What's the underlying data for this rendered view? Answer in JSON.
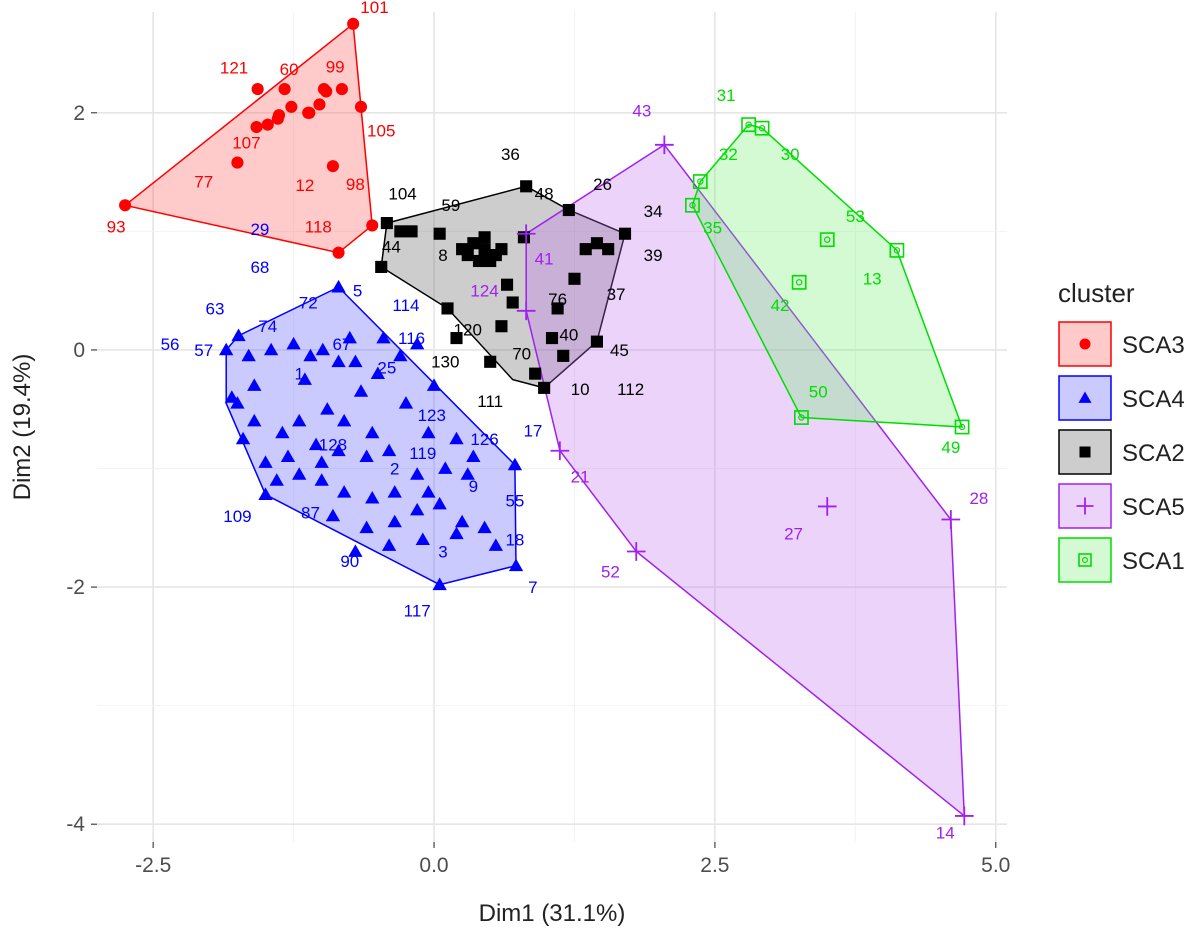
{
  "chart_data": {
    "type": "scatter",
    "xlabel": "Dim1 (31.1%)",
    "ylabel": "Dim2 (19.4%)",
    "xlim": [
      -3.0,
      5.1
    ],
    "ylim": [
      -4.15,
      2.85
    ],
    "x_ticks": [
      -2.5,
      0.0,
      2.5,
      5.0
    ],
    "x_tick_labels": [
      "-2.5",
      "0.0",
      "2.5",
      "5.0"
    ],
    "y_ticks": [
      -4,
      -2,
      0,
      2
    ],
    "y_tick_labels": [
      "-4",
      "-2",
      "0",
      "2"
    ],
    "grid": true,
    "legend": {
      "title": "cluster",
      "position": "right",
      "entries": [
        {
          "label": "SCA3",
          "color": "#ff0000",
          "shape": "circle"
        },
        {
          "label": "SCA4",
          "color": "#0000ff",
          "shape": "triangle"
        },
        {
          "label": "SCA2",
          "color": "#000000",
          "shape": "square"
        },
        {
          "label": "SCA5",
          "color": "#a020f0",
          "shape": "plus"
        },
        {
          "label": "SCA1",
          "color": "#00dd00",
          "shape": "boxed-square"
        }
      ]
    },
    "clusters": [
      {
        "name": "SCA3",
        "color": "#ff0000",
        "fill": "rgba(255,80,80,0.30)",
        "shape": "circle",
        "hull": [
          [
            -0.72,
            2.75
          ],
          [
            -0.55,
            1.05
          ],
          [
            -0.85,
            0.82
          ],
          [
            -2.75,
            1.22
          ]
        ],
        "points": [
          [
            -0.72,
            2.75
          ],
          [
            -2.75,
            1.22
          ],
          [
            -0.55,
            1.05
          ],
          [
            -0.85,
            0.82
          ],
          [
            -1.57,
            2.2
          ],
          [
            -1.33,
            2.2
          ],
          [
            -0.98,
            2.2
          ],
          [
            -0.82,
            2.2
          ],
          [
            -1.27,
            2.05
          ],
          [
            -1.02,
            2.07
          ],
          [
            -0.65,
            2.05
          ],
          [
            -1.38,
            1.98
          ],
          [
            -1.48,
            1.9
          ],
          [
            -1.12,
            2.0
          ],
          [
            -1.11,
            2.0
          ],
          [
            -1.58,
            1.88
          ],
          [
            -1.75,
            1.58
          ],
          [
            -0.9,
            1.55
          ],
          [
            -1.39,
            1.95
          ],
          [
            -0.96,
            2.18
          ]
        ],
        "labels": [
          {
            "text": "101",
            "x": -0.53,
            "y": 2.84
          },
          {
            "text": "121",
            "x": -1.78,
            "y": 2.33
          },
          {
            "text": "60",
            "x": -1.29,
            "y": 2.32
          },
          {
            "text": "99",
            "x": -0.88,
            "y": 2.34
          },
          {
            "text": "105",
            "x": -0.47,
            "y": 1.8
          },
          {
            "text": "107",
            "x": -1.67,
            "y": 1.7
          },
          {
            "text": "77",
            "x": -2.05,
            "y": 1.37
          },
          {
            "text": "12",
            "x": -1.15,
            "y": 1.34
          },
          {
            "text": "98",
            "x": -0.7,
            "y": 1.35
          },
          {
            "text": "118",
            "x": -1.03,
            "y": 0.99
          },
          {
            "text": "93",
            "x": -2.83,
            "y": 0.99
          }
        ]
      },
      {
        "name": "SCA4",
        "color": "#0000ff",
        "fill": "rgba(80,80,255,0.30)",
        "shape": "triangle",
        "hull": [
          [
            -0.85,
            0.53
          ],
          [
            0.72,
            -0.97
          ],
          [
            0.73,
            -1.82
          ],
          [
            0.05,
            -1.98
          ],
          [
            -1.5,
            -1.22
          ],
          [
            -1.85,
            -0.45
          ],
          [
            -1.85,
            0.0
          ],
          [
            -1.74,
            0.12
          ]
        ],
        "points": [
          [
            -0.85,
            0.53
          ],
          [
            -1.85,
            0.0
          ],
          [
            -1.74,
            0.12
          ],
          [
            0.72,
            -0.97
          ],
          [
            0.73,
            -1.82
          ],
          [
            0.05,
            -1.98
          ],
          [
            -1.5,
            -1.22
          ],
          [
            -1.75,
            -0.45
          ],
          [
            -0.99,
            0.0
          ],
          [
            -0.85,
            -0.1
          ],
          [
            -1.65,
            -0.05
          ],
          [
            -1.45,
            0.0
          ],
          [
            -1.1,
            -0.05
          ],
          [
            -0.7,
            -0.1
          ],
          [
            -0.5,
            -0.2
          ],
          [
            -1.8,
            -0.4
          ],
          [
            -1.6,
            -0.6
          ],
          [
            -1.35,
            -0.7
          ],
          [
            -1.2,
            -0.6
          ],
          [
            -0.95,
            -0.5
          ],
          [
            -0.8,
            -0.6
          ],
          [
            -0.55,
            -0.7
          ],
          [
            -1.7,
            -0.75
          ],
          [
            -1.5,
            -0.95
          ],
          [
            -1.3,
            -0.9
          ],
          [
            -1.05,
            -0.8
          ],
          [
            -0.85,
            -0.85
          ],
          [
            -0.6,
            -0.9
          ],
          [
            -0.4,
            -0.85
          ],
          [
            -1.4,
            -1.1
          ],
          [
            -1.2,
            -1.05
          ],
          [
            -1.0,
            -1.1
          ],
          [
            -0.8,
            -1.2
          ],
          [
            -0.55,
            -1.25
          ],
          [
            -0.35,
            -1.2
          ],
          [
            -0.15,
            -1.05
          ],
          [
            0.1,
            -1.0
          ],
          [
            0.3,
            -1.05
          ],
          [
            -0.9,
            -1.4
          ],
          [
            -0.6,
            -1.5
          ],
          [
            -0.35,
            -1.45
          ],
          [
            -0.15,
            -1.35
          ],
          [
            0.05,
            -1.3
          ],
          [
            0.25,
            -1.45
          ],
          [
            0.45,
            -1.5
          ],
          [
            -0.7,
            -1.7
          ],
          [
            -0.4,
            -1.65
          ],
          [
            -0.1,
            -1.6
          ],
          [
            0.2,
            -1.55
          ],
          [
            0.55,
            -1.65
          ],
          [
            -0.3,
            -0.05
          ],
          [
            -0.15,
            0.05
          ],
          [
            0.0,
            -0.3
          ],
          [
            -0.25,
            -0.45
          ],
          [
            -0.05,
            -0.7
          ],
          [
            0.2,
            -0.75
          ],
          [
            0.35,
            -0.9
          ],
          [
            -0.45,
            0.1
          ],
          [
            -1.25,
            0.05
          ],
          [
            -0.75,
            0.1
          ],
          [
            -1.6,
            -0.3
          ],
          [
            -1.15,
            -0.25
          ],
          [
            -0.65,
            -0.35
          ],
          [
            -1.0,
            -0.95
          ],
          [
            -0.05,
            -1.2
          ]
        ],
        "labels": [
          {
            "text": "29",
            "x": -1.55,
            "y": 0.97
          },
          {
            "text": "68",
            "x": -1.55,
            "y": 0.65
          },
          {
            "text": "5",
            "x": -0.68,
            "y": 0.45
          },
          {
            "text": "72",
            "x": -1.12,
            "y": 0.35
          },
          {
            "text": "63",
            "x": -1.95,
            "y": 0.3
          },
          {
            "text": "74",
            "x": -1.48,
            "y": 0.15
          },
          {
            "text": "114",
            "x": -0.25,
            "y": 0.33
          },
          {
            "text": "67",
            "x": -0.82,
            "y": 0.0
          },
          {
            "text": "116",
            "x": -0.2,
            "y": 0.05
          },
          {
            "text": "56",
            "x": -2.35,
            "y": 0.0
          },
          {
            "text": "57",
            "x": -2.05,
            "y": -0.05
          },
          {
            "text": "1",
            "x": -1.2,
            "y": -0.25
          },
          {
            "text": "25",
            "x": -0.42,
            "y": -0.2
          },
          {
            "text": "123",
            "x": -0.02,
            "y": -0.6
          },
          {
            "text": "128",
            "x": -0.9,
            "y": -0.85
          },
          {
            "text": "2",
            "x": -0.35,
            "y": -1.05
          },
          {
            "text": "119",
            "x": -0.1,
            "y": -0.92
          },
          {
            "text": "126",
            "x": 0.45,
            "y": -0.8
          },
          {
            "text": "17",
            "x": 0.88,
            "y": -0.73
          },
          {
            "text": "9",
            "x": 0.35,
            "y": -1.2
          },
          {
            "text": "55",
            "x": 0.72,
            "y": -1.32
          },
          {
            "text": "109",
            "x": -1.75,
            "y": -1.45
          },
          {
            "text": "87",
            "x": -1.1,
            "y": -1.42
          },
          {
            "text": "18",
            "x": 0.72,
            "y": -1.65
          },
          {
            "text": "3",
            "x": 0.08,
            "y": -1.75
          },
          {
            "text": "90",
            "x": -0.75,
            "y": -1.83
          },
          {
            "text": "7",
            "x": 0.88,
            "y": -2.05
          },
          {
            "text": "117",
            "x": -0.15,
            "y": -2.25
          }
        ]
      },
      {
        "name": "SCA2",
        "color": "#000000",
        "fill": "rgba(90,90,90,0.30)",
        "shape": "square",
        "hull": [
          [
            0.82,
            1.38
          ],
          [
            1.2,
            1.18
          ],
          [
            1.7,
            0.98
          ],
          [
            1.45,
            0.07
          ],
          [
            0.98,
            -0.32
          ],
          [
            0.7,
            -0.25
          ],
          [
            0.12,
            0.35
          ],
          [
            -0.47,
            0.7
          ],
          [
            -0.42,
            1.07
          ]
        ],
        "points": [
          [
            0.82,
            1.38
          ],
          [
            1.2,
            1.18
          ],
          [
            1.7,
            0.98
          ],
          [
            1.45,
            0.07
          ],
          [
            0.98,
            -0.32
          ],
          [
            0.12,
            0.35
          ],
          [
            -0.47,
            0.7
          ],
          [
            -0.42,
            1.07
          ],
          [
            -0.2,
            1.0
          ],
          [
            0.05,
            0.98
          ],
          [
            0.25,
            0.85
          ],
          [
            0.35,
            0.9
          ],
          [
            0.45,
            0.85
          ],
          [
            0.5,
            0.75
          ],
          [
            0.55,
            0.8
          ],
          [
            0.3,
            0.8
          ],
          [
            0.4,
            0.75
          ],
          [
            0.6,
            0.85
          ],
          [
            0.45,
            0.95
          ],
          [
            0.65,
            0.55
          ],
          [
            0.7,
            0.4
          ],
          [
            0.6,
            0.2
          ],
          [
            1.1,
            0.35
          ],
          [
            1.25,
            0.6
          ],
          [
            1.35,
            0.85
          ],
          [
            1.45,
            0.9
          ],
          [
            1.55,
            0.85
          ],
          [
            1.05,
            0.1
          ],
          [
            0.2,
            0.1
          ],
          [
            0.5,
            -0.1
          ],
          [
            0.9,
            -0.2
          ],
          [
            1.15,
            -0.05
          ],
          [
            -0.3,
            1.0
          ],
          [
            0.8,
            0.95
          ]
        ],
        "labels": [
          {
            "text": "36",
            "x": 0.68,
            "y": 1.6
          },
          {
            "text": "48",
            "x": 0.98,
            "y": 1.27
          },
          {
            "text": "26",
            "x": 1.5,
            "y": 1.35
          },
          {
            "text": "104",
            "x": -0.28,
            "y": 1.27
          },
          {
            "text": "59",
            "x": 0.15,
            "y": 1.17
          },
          {
            "text": "34",
            "x": 1.95,
            "y": 1.12
          },
          {
            "text": "44",
            "x": -0.38,
            "y": 0.82
          },
          {
            "text": "8",
            "x": 0.08,
            "y": 0.75
          },
          {
            "text": "39",
            "x": 1.95,
            "y": 0.75
          },
          {
            "text": "76",
            "x": 1.1,
            "y": 0.38
          },
          {
            "text": "37",
            "x": 1.62,
            "y": 0.42
          },
          {
            "text": "120",
            "x": 0.3,
            "y": 0.12
          },
          {
            "text": "40",
            "x": 1.2,
            "y": 0.08
          },
          {
            "text": "70",
            "x": 0.78,
            "y": -0.08
          },
          {
            "text": "45",
            "x": 1.65,
            "y": -0.05
          },
          {
            "text": "130",
            "x": 0.1,
            "y": -0.15
          },
          {
            "text": "10",
            "x": 1.3,
            "y": -0.38
          },
          {
            "text": "112",
            "x": 1.75,
            "y": -0.38
          },
          {
            "text": "111",
            "x": 0.5,
            "y": -0.48
          }
        ]
      },
      {
        "name": "SCA5",
        "color": "#a020f0",
        "fill": "rgba(190,110,240,0.30)",
        "shape": "plus",
        "hull": [
          [
            2.05,
            1.73
          ],
          [
            4.6,
            -1.43
          ],
          [
            4.72,
            -3.93
          ],
          [
            1.8,
            -1.7
          ],
          [
            1.12,
            -0.85
          ],
          [
            0.82,
            0.33
          ],
          [
            0.82,
            0.98
          ]
        ],
        "points": [
          [
            2.05,
            1.73
          ],
          [
            4.6,
            -1.43
          ],
          [
            4.72,
            -3.93
          ],
          [
            1.8,
            -1.7
          ],
          [
            1.12,
            -0.85
          ],
          [
            0.82,
            0.33
          ],
          [
            0.82,
            0.98
          ],
          [
            3.5,
            -1.32
          ]
        ],
        "labels": [
          {
            "text": "43",
            "x": 1.85,
            "y": 1.97
          },
          {
            "text": "41",
            "x": 0.98,
            "y": 0.72
          },
          {
            "text": "124",
            "x": 0.45,
            "y": 0.45
          },
          {
            "text": "21",
            "x": 1.3,
            "y": -1.12
          },
          {
            "text": "28",
            "x": 4.85,
            "y": -1.3
          },
          {
            "text": "27",
            "x": 3.2,
            "y": -1.6
          },
          {
            "text": "52",
            "x": 1.57,
            "y": -1.92
          },
          {
            "text": "14",
            "x": 4.55,
            "y": -4.12
          }
        ]
      },
      {
        "name": "SCA1",
        "color": "#00dd00",
        "fill": "rgba(110,240,110,0.30)",
        "shape": "boxed-square",
        "hull": [
          [
            2.8,
            1.9
          ],
          [
            2.92,
            1.87
          ],
          [
            4.12,
            0.84
          ],
          [
            4.7,
            -0.65
          ],
          [
            3.27,
            -0.57
          ],
          [
            2.3,
            1.22
          ],
          [
            2.37,
            1.42
          ]
        ],
        "points": [
          [
            2.8,
            1.9
          ],
          [
            2.92,
            1.87
          ],
          [
            4.12,
            0.84
          ],
          [
            4.7,
            -0.65
          ],
          [
            3.27,
            -0.57
          ],
          [
            2.3,
            1.22
          ],
          [
            2.37,
            1.42
          ],
          [
            3.5,
            0.93
          ],
          [
            3.25,
            0.57
          ]
        ],
        "labels": [
          {
            "text": "31",
            "x": 2.6,
            "y": 2.1
          },
          {
            "text": "32",
            "x": 2.62,
            "y": 1.6
          },
          {
            "text": "30",
            "x": 3.17,
            "y": 1.6
          },
          {
            "text": "53",
            "x": 3.75,
            "y": 1.08
          },
          {
            "text": "35",
            "x": 2.48,
            "y": 0.98
          },
          {
            "text": "13",
            "x": 3.9,
            "y": 0.55
          },
          {
            "text": "42",
            "x": 3.08,
            "y": 0.33
          },
          {
            "text": "50",
            "x": 3.42,
            "y": -0.4
          },
          {
            "text": "49",
            "x": 4.6,
            "y": -0.87
          }
        ]
      }
    ]
  }
}
